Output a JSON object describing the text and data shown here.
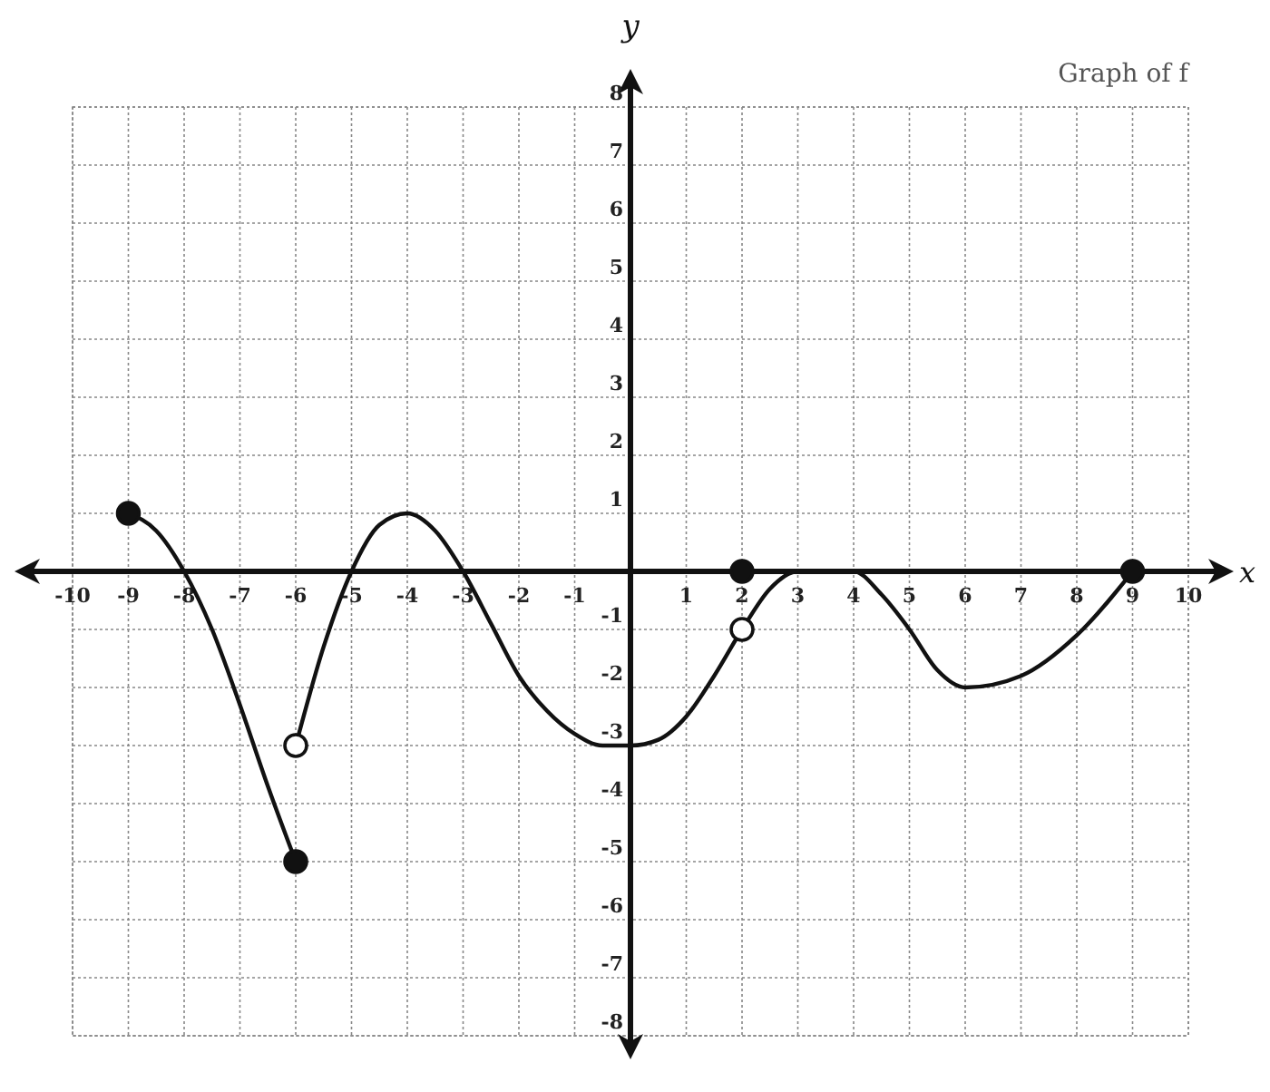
{
  "chart_data": {
    "type": "line",
    "title": "Graph of f",
    "xlabel": "x",
    "ylabel": "y",
    "xlim": [
      -10,
      10
    ],
    "ylim": [
      -8,
      8
    ],
    "xticks": [
      -10,
      -9,
      -8,
      -7,
      -6,
      -5,
      -4,
      -3,
      -2,
      -1,
      1,
      2,
      3,
      4,
      5,
      6,
      7,
      8,
      9,
      10
    ],
    "yticks": [
      -8,
      -7,
      -6,
      -5,
      -4,
      -3,
      -2,
      -1,
      1,
      2,
      3,
      4,
      5,
      6,
      7,
      8
    ],
    "grid": true,
    "line_style": "solid",
    "series": [
      {
        "color": "#111111",
        "marker": "none",
        "x": [
          -9,
          -8.5,
          -8,
          -7.5,
          -7,
          -6.5,
          -6
        ],
        "values": [
          1,
          0.7,
          0,
          -1,
          -2.3,
          -3.7,
          -5
        ]
      },
      {
        "color": "#111111",
        "marker": "none",
        "x": [
          -6,
          -5.5,
          -5,
          -4.5,
          -4,
          -3.5,
          -3,
          -2.5,
          -2,
          -1.5,
          -1,
          -0.5,
          0,
          0.5,
          1,
          1.5,
          2,
          2.5,
          3,
          3.5,
          4,
          4.5,
          5,
          5.5,
          6,
          7,
          8,
          9
        ],
        "values": [
          -3,
          -1.3,
          0,
          0.8,
          1,
          0.7,
          0,
          -0.9,
          -1.8,
          -2.4,
          -2.8,
          -3,
          -3,
          -2.9,
          -2.5,
          -1.8,
          -1,
          -0.3,
          0,
          0,
          0,
          -0.4,
          -1,
          -1.7,
          -2,
          -1.8,
          -1.1,
          0
        ]
      },
      {
        "type": "scatter",
        "color": "#111111",
        "marker": "circle",
        "x": [
          -9,
          -6,
          2,
          9
        ],
        "values": [
          1,
          -5,
          0,
          0
        ]
      },
      {
        "type": "scatter",
        "color": "#ffffff",
        "marker": "circle",
        "x": [
          -6,
          2
        ],
        "values": [
          -3,
          -1
        ]
      }
    ]
  }
}
